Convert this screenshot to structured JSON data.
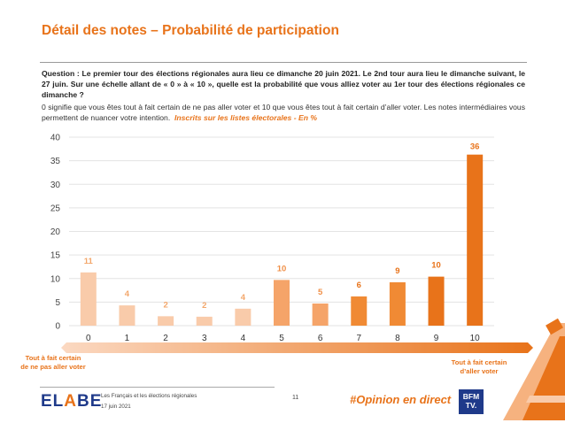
{
  "title": "Détail des notes – Probabilité de participation",
  "question": "Question : Le premier tour des élections régionales aura lieu ce dimanche 20 juin 2021. Le 2nd tour aura lieu le dimanche suivant, le 27 juin. Sur une échelle allant de « 0 » à « 10 », quelle est la probabilité que vous alliez voter au 1er tour des élections régionales ce dimanche ?",
  "explanation": "0 signifie que vous êtes tout à fait certain de ne pas aller voter et 10 que vous êtes tout à fait certain d’aller voter. Les notes intermédiaires vous permettent de nuancer votre intention.",
  "base_note": "Inscrits sur les listes électorales - En %",
  "chart_data": {
    "type": "bar",
    "categories": [
      "0",
      "1",
      "2",
      "3",
      "4",
      "5",
      "6",
      "7",
      "8",
      "9",
      "10"
    ],
    "values": [
      11,
      4,
      2,
      2,
      4,
      10,
      5,
      6,
      9,
      10,
      36
    ],
    "bar_heights": [
      11.3,
      4.3,
      2.0,
      1.9,
      3.6,
      9.7,
      4.7,
      6.2,
      9.2,
      10.4,
      36.3
    ],
    "colors": [
      "#F9CBAA",
      "#F9CBAA",
      "#F9CBAA",
      "#F9CBAA",
      "#F9CBAA",
      "#F5A469",
      "#F5A469",
      "#F08A34",
      "#F08A34",
      "#E8731A",
      "#E8731A"
    ],
    "label_colors": [
      "#F3A76B",
      "#F3A76B",
      "#F3A76B",
      "#F3A76B",
      "#F3A76B",
      "#F09048",
      "#F09048",
      "#E8731A",
      "#E8731A",
      "#E8731A",
      "#E8731A"
    ],
    "ylim": [
      0,
      40
    ],
    "yticks": [
      "0",
      "5",
      "10",
      "15",
      "20",
      "25",
      "30",
      "35",
      "40"
    ],
    "grid": true
  },
  "pole_left": "Tout à fait certain\nde ne pas aller voter",
  "pole_right": "Tout à fait certain\nd’aller voter",
  "footer": {
    "logo_prefix": "EL",
    "logo_accent": "A",
    "logo_suffix": "BE",
    "subtitle": "Les Français et les élections régionales",
    "date": "17 juin 2021",
    "page": "11",
    "hashtag": "#Opinion en direct",
    "partner": "BFM TV."
  }
}
